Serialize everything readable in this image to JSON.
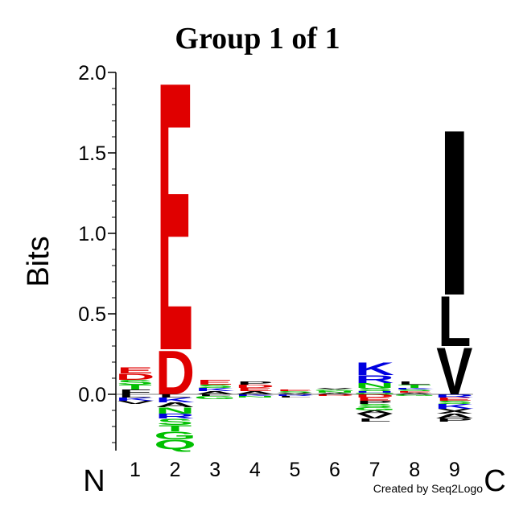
{
  "chart_data": {
    "type": "sequence-logo",
    "title": "Group 1 of 1",
    "ylabel": "Bits",
    "ylim": [
      -0.35,
      2.0
    ],
    "yticks": [
      "0.0",
      "0.5",
      "1.0",
      "1.5",
      "2.0"
    ],
    "yticks_values": [
      0.0,
      0.5,
      1.0,
      1.5,
      2.0
    ],
    "n_terminus_label": "N",
    "c_terminus_label": "C",
    "credit": "Created by Seq2Logo",
    "positions": [
      {
        "label": "1",
        "positive": [
          {
            "letter": "F",
            "bits": 0.03,
            "color": "#000000"
          },
          {
            "letter": "T",
            "bits": 0.03,
            "color": "#00c000"
          },
          {
            "letter": "S",
            "bits": 0.03,
            "color": "#00c000"
          },
          {
            "letter": "D",
            "bits": 0.04,
            "color": "#e00000"
          },
          {
            "letter": "E",
            "bits": 0.04,
            "color": "#e00000"
          }
        ],
        "negative": [
          {
            "letter": "L",
            "bits": 0.02,
            "color": "#000000"
          },
          {
            "letter": "K",
            "bits": 0.02,
            "color": "#0000e0"
          },
          {
            "letter": "V",
            "bits": 0.02,
            "color": "#000000"
          }
        ]
      },
      {
        "label": "2",
        "positive": [
          {
            "letter": "D",
            "bits": 0.28,
            "color": "#e00000"
          },
          {
            "letter": "E",
            "bits": 1.72,
            "color": "#e00000"
          }
        ],
        "negative": [
          {
            "letter": "L",
            "bits": 0.02,
            "color": "#000000"
          },
          {
            "letter": "K",
            "bits": 0.03,
            "color": "#0000e0"
          },
          {
            "letter": "A",
            "bits": 0.03,
            "color": "#000000"
          },
          {
            "letter": "N",
            "bits": 0.04,
            "color": "#00c000"
          },
          {
            "letter": "R",
            "bits": 0.03,
            "color": "#0000e0"
          },
          {
            "letter": "S",
            "bits": 0.04,
            "color": "#00c000"
          },
          {
            "letter": "T",
            "bits": 0.04,
            "color": "#00c000"
          },
          {
            "letter": "G",
            "bits": 0.05,
            "color": "#00c000"
          },
          {
            "letter": "Q",
            "bits": 0.06,
            "color": "#00c000"
          }
        ]
      },
      {
        "label": "3",
        "positive": [
          {
            "letter": "A",
            "bits": 0.02,
            "color": "#000000"
          },
          {
            "letter": "K",
            "bits": 0.02,
            "color": "#0000e0"
          },
          {
            "letter": "S",
            "bits": 0.02,
            "color": "#00c000"
          },
          {
            "letter": "E",
            "bits": 0.03,
            "color": "#e00000"
          }
        ],
        "negative": [
          {
            "letter": "L",
            "bits": 0.01,
            "color": "#000000"
          },
          {
            "letter": "G",
            "bits": 0.02,
            "color": "#00c000"
          }
        ]
      },
      {
        "label": "4",
        "positive": [
          {
            "letter": "A",
            "bits": 0.02,
            "color": "#000000"
          },
          {
            "letter": "E",
            "bits": 0.02,
            "color": "#e00000"
          },
          {
            "letter": "D",
            "bits": 0.02,
            "color": "#e00000"
          },
          {
            "letter": "P",
            "bits": 0.02,
            "color": "#000000"
          }
        ],
        "negative": [
          {
            "letter": "K",
            "bits": 0.01,
            "color": "#0000e0"
          },
          {
            "letter": "N",
            "bits": 0.01,
            "color": "#00c000"
          }
        ]
      },
      {
        "label": "5",
        "positive": [
          {
            "letter": "V",
            "bits": 0.01,
            "color": "#000000"
          },
          {
            "letter": "S",
            "bits": 0.01,
            "color": "#00c000"
          },
          {
            "letter": "E",
            "bits": 0.01,
            "color": "#e00000"
          }
        ],
        "negative": [
          {
            "letter": "R",
            "bits": 0.01,
            "color": "#0000e0"
          },
          {
            "letter": "L",
            "bits": 0.01,
            "color": "#000000"
          }
        ]
      },
      {
        "label": "6",
        "positive": [
          {
            "letter": "A",
            "bits": 0.01,
            "color": "#000000"
          },
          {
            "letter": "N",
            "bits": 0.01,
            "color": "#00c000"
          },
          {
            "letter": "G",
            "bits": 0.01,
            "color": "#00c000"
          },
          {
            "letter": "V",
            "bits": 0.01,
            "color": "#000000"
          }
        ],
        "negative": [
          {
            "letter": "D",
            "bits": 0.01,
            "color": "#e00000"
          }
        ]
      },
      {
        "label": "7",
        "positive": [
          {
            "letter": "Q",
            "bits": 0.01,
            "color": "#00c000"
          },
          {
            "letter": "H",
            "bits": 0.01,
            "color": "#0000e0"
          },
          {
            "letter": "S",
            "bits": 0.02,
            "color": "#00c000"
          },
          {
            "letter": "N",
            "bits": 0.03,
            "color": "#00c000"
          },
          {
            "letter": "R",
            "bits": 0.05,
            "color": "#0000e0"
          },
          {
            "letter": "K",
            "bits": 0.08,
            "color": "#0000e0"
          }
        ],
        "negative": [
          {
            "letter": "D",
            "bits": 0.02,
            "color": "#e00000"
          },
          {
            "letter": "E",
            "bits": 0.02,
            "color": "#e00000"
          },
          {
            "letter": "P",
            "bits": 0.02,
            "color": "#000000"
          },
          {
            "letter": "S",
            "bits": 0.02,
            "color": "#00c000"
          },
          {
            "letter": "G",
            "bits": 0.02,
            "color": "#00c000"
          },
          {
            "letter": "A",
            "bits": 0.02,
            "color": "#000000"
          },
          {
            "letter": "V",
            "bits": 0.03,
            "color": "#000000"
          },
          {
            "letter": "L",
            "bits": 0.02,
            "color": "#000000"
          }
        ]
      },
      {
        "label": "8",
        "positive": [
          {
            "letter": "A",
            "bits": 0.01,
            "color": "#000000"
          },
          {
            "letter": "E",
            "bits": 0.01,
            "color": "#e00000"
          },
          {
            "letter": "S",
            "bits": 0.01,
            "color": "#00c000"
          },
          {
            "letter": "K",
            "bits": 0.01,
            "color": "#0000e0"
          },
          {
            "letter": "T",
            "bits": 0.02,
            "color": "#00c000"
          },
          {
            "letter": "L",
            "bits": 0.02,
            "color": "#000000"
          }
        ],
        "negative": [
          {
            "letter": "G",
            "bits": 0.01,
            "color": "#00c000"
          }
        ]
      },
      {
        "label": "9",
        "positive": [
          {
            "letter": "V",
            "bits": 0.3,
            "color": "#000000"
          },
          {
            "letter": "L",
            "bits": 0.32,
            "color": "#000000"
          },
          {
            "letter": "I",
            "bits": 1.06,
            "color": "#000000"
          }
        ],
        "negative": [
          {
            "letter": "R",
            "bits": 0.02,
            "color": "#0000e0"
          },
          {
            "letter": "E",
            "bits": 0.02,
            "color": "#e00000"
          },
          {
            "letter": "S",
            "bits": 0.02,
            "color": "#00c000"
          },
          {
            "letter": "K",
            "bits": 0.03,
            "color": "#0000e0"
          },
          {
            "letter": "X",
            "bits": 0.03,
            "color": "#000000"
          },
          {
            "letter": "A",
            "bits": 0.03,
            "color": "#000000"
          },
          {
            "letter": "P",
            "bits": 0.02,
            "color": "#000000"
          }
        ]
      }
    ]
  }
}
